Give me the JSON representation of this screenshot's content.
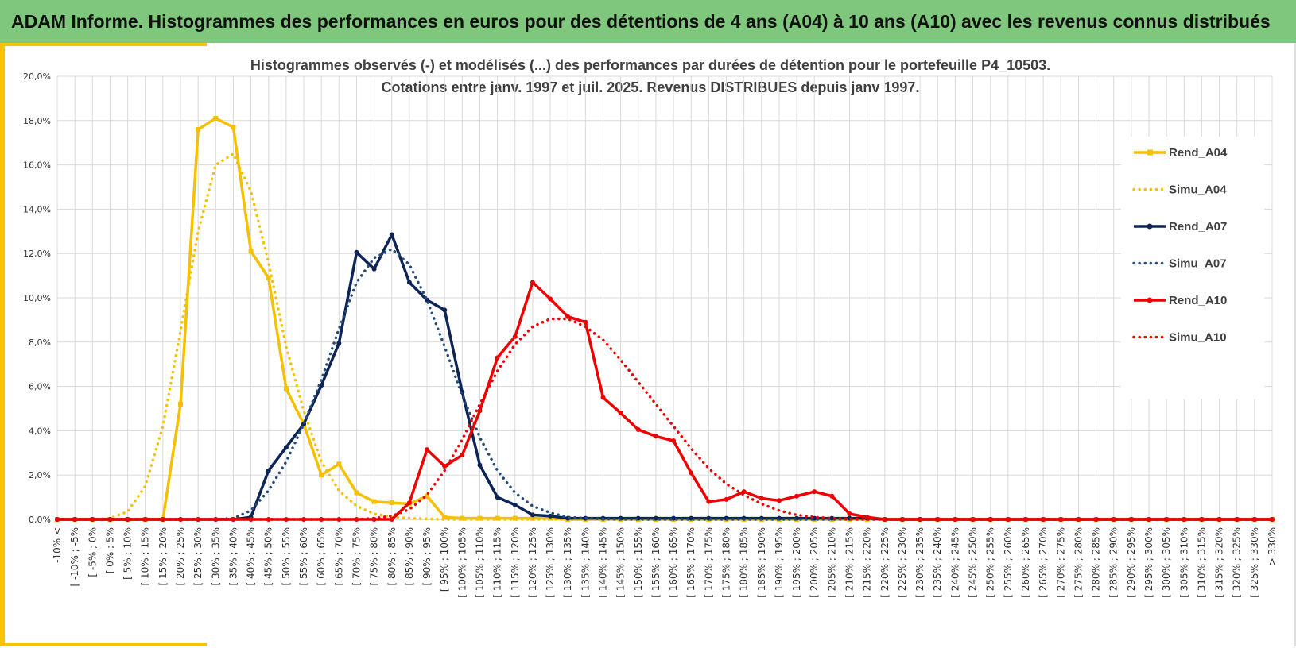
{
  "banner": {
    "title": "ADAM Informe. Histogrammes des performances en euros pour des détentions de 4 ans (A04) à 10 ans (A10) avec les revenus connus distribués"
  },
  "colors": {
    "banner_bg": "#7fc77c",
    "accent": "#f5c400",
    "A04": "#f5c000",
    "A07_rend": "#0d2456",
    "A07_simu": "#264d7a",
    "A10": "#ee0000",
    "grid": "#d9d9d9"
  },
  "chart_data": {
    "type": "line",
    "title_line1": "Histogrammes observés (-) et modélisés (...) des performances par durées de détention pour le portefeuille P4_10503.",
    "title_line2": "Cotations entre janv. 1997 et juil. 2025. Revenus DISTRIBUES depuis janv 1997.",
    "ylim": [
      0,
      20
    ],
    "ytick_values": [
      0,
      2,
      4,
      6,
      8,
      10,
      12,
      14,
      16,
      18,
      20
    ],
    "ytick_labels": [
      "0,0%",
      "2,0%",
      "4,0%",
      "6,0%",
      "8,0%",
      "10,0%",
      "12,0%",
      "14,0%",
      "16,0%",
      "18,0%",
      "20,0%"
    ],
    "grid": true,
    "legend_position": "right",
    "categories": [
      "-10% <",
      "[ -10% ; -5%",
      "[ -5% ; 0%",
      "[ 0% ; 5%",
      "[ 5% ; 10%",
      "[ 10% ; 15%",
      "[ 15% ; 20%",
      "[ 20% ; 25%",
      "[ 25% ; 30%",
      "[ 30% ; 35%",
      "[ 35% ; 40%",
      "[ 40% ; 45%",
      "[ 45% ; 50%",
      "[ 50% ; 55%",
      "[ 55% ; 60%",
      "[ 60% ; 65%",
      "[ 65% ; 70%",
      "[ 70% ; 75%",
      "[ 75% ; 80%",
      "[ 80% ; 85%",
      "[ 85% ; 90%",
      "[ 90% ; 95%",
      "[ 95% ; 100%",
      "[ 100% ; 105%",
      "[ 105% ; 110%",
      "[ 110% ; 115%",
      "[ 115% ; 120%",
      "[ 120% ; 125%",
      "[ 125% ; 130%",
      "[ 130% ; 135%",
      "[ 135% ; 140%",
      "[ 140% ; 145%",
      "[ 145% ; 150%",
      "[ 150% ; 155%",
      "[ 155% ; 160%",
      "[ 160% ; 165%",
      "[ 165% ; 170%",
      "[ 170% ; 175%",
      "[ 175% ; 180%",
      "[ 180% ; 185%",
      "[ 185% ; 190%",
      "[ 190% ; 195%",
      "[ 195% ; 200%",
      "[ 200% ; 205%",
      "[ 205% ; 210%",
      "[ 210% ; 215%",
      "[ 215% ; 220%",
      "[ 220% ; 225%",
      "[ 225% ; 230%",
      "[ 230% ; 235%",
      "[ 235% ; 240%",
      "[ 240% ; 245%",
      "[ 245% ; 250%",
      "[ 250% ; 255%",
      "[ 255% ; 260%",
      "[ 260% ; 265%",
      "[ 265% ; 270%",
      "[ 270% ; 275%",
      "[ 275% ; 280%",
      "[ 280% ; 285%",
      "[ 285% ; 290%",
      "[ 290% ; 295%",
      "[ 295% ; 300%",
      "[ 300% ; 305%",
      "[ 305% ; 310%",
      "[ 310% ; 315%",
      "[ 315% ; 320%",
      "[ 320% ; 325%",
      "[ 325% ; 330%",
      "> 330%"
    ],
    "series": [
      {
        "name": "Rend_A04",
        "style": "solid",
        "marker": "square",
        "color": "#f5c000",
        "values": [
          0,
          0,
          0,
          0,
          0,
          0,
          0,
          5.2,
          17.6,
          18.1,
          17.7,
          12.1,
          10.9,
          5.9,
          4.3,
          2.0,
          2.5,
          1.2,
          0.8,
          0.75,
          0.7,
          1.05,
          0.1,
          0.05,
          0.05,
          0.05,
          0.05,
          0.05,
          0.05,
          0,
          0,
          0,
          0,
          0,
          0,
          0,
          0,
          0,
          0,
          0,
          0,
          0,
          0,
          0,
          0,
          0,
          0,
          0,
          0,
          0,
          0,
          0,
          0,
          0,
          0,
          0,
          0,
          0,
          0,
          0,
          0,
          0,
          0,
          0,
          0,
          0,
          0,
          0,
          0,
          0
        ]
      },
      {
        "name": "Simu_A04",
        "style": "dotted",
        "marker": "none",
        "color": "#f5c000",
        "values": [
          0,
          0,
          0,
          0.05,
          0.35,
          1.5,
          4.2,
          8.5,
          13.0,
          16.0,
          16.5,
          14.8,
          11.6,
          7.8,
          4.9,
          2.6,
          1.3,
          0.6,
          0.25,
          0.1,
          0.05,
          0.02,
          0,
          0,
          0,
          0,
          0,
          0,
          0,
          0,
          0,
          0,
          0,
          0,
          0,
          0,
          0,
          0,
          0,
          0,
          0,
          0,
          0,
          0,
          0,
          0,
          0,
          0,
          0,
          0,
          0,
          0,
          0,
          0,
          0,
          0,
          0,
          0,
          0,
          0,
          0,
          0,
          0,
          0,
          0,
          0,
          0,
          0,
          0,
          0
        ]
      },
      {
        "name": "Rend_A07",
        "style": "solid",
        "marker": "circle",
        "color": "#0d2456",
        "values": [
          0,
          0,
          0,
          0,
          0,
          0,
          0,
          0,
          0,
          0,
          0,
          0.1,
          2.2,
          3.25,
          4.3,
          6.05,
          7.95,
          12.05,
          11.3,
          12.85,
          10.7,
          9.9,
          9.45,
          5.75,
          2.45,
          1.0,
          0.65,
          0.2,
          0.15,
          0.05,
          0.05,
          0.05,
          0.05,
          0.05,
          0.05,
          0.05,
          0.05,
          0.05,
          0.05,
          0.05,
          0.05,
          0.05,
          0.05,
          0.05,
          0.05,
          0.05,
          0.05,
          0,
          0,
          0,
          0,
          0,
          0,
          0,
          0,
          0,
          0,
          0,
          0,
          0,
          0,
          0,
          0,
          0,
          0,
          0,
          0,
          0,
          0,
          0
        ]
      },
      {
        "name": "Simu_A07",
        "style": "dotted",
        "marker": "none",
        "color": "#264d7a",
        "values": [
          0,
          0,
          0,
          0,
          0,
          0,
          0,
          0,
          0,
          0,
          0.05,
          0.4,
          1.3,
          2.6,
          4.3,
          6.3,
          8.6,
          10.7,
          11.8,
          12.2,
          11.5,
          9.9,
          7.8,
          5.6,
          3.7,
          2.2,
          1.2,
          0.6,
          0.3,
          0.1,
          0.05,
          0.02,
          0,
          0,
          0,
          0,
          0,
          0,
          0,
          0,
          0,
          0,
          0,
          0,
          0,
          0,
          0,
          0,
          0,
          0,
          0,
          0,
          0,
          0,
          0,
          0,
          0,
          0,
          0,
          0,
          0,
          0,
          0,
          0,
          0,
          0,
          0,
          0,
          0,
          0
        ]
      },
      {
        "name": "Rend_A10",
        "style": "solid",
        "marker": "circle",
        "color": "#ee0000",
        "values": [
          0,
          0,
          0,
          0,
          0,
          0,
          0,
          0,
          0,
          0,
          0,
          0,
          0,
          0,
          0,
          0,
          0,
          0,
          0,
          0,
          0.75,
          3.15,
          2.4,
          2.9,
          4.9,
          7.3,
          8.25,
          10.7,
          9.95,
          9.15,
          8.9,
          5.5,
          4.8,
          4.05,
          3.75,
          3.55,
          2.1,
          0.8,
          0.9,
          1.25,
          0.95,
          0.85,
          1.05,
          1.25,
          1.05,
          0.25,
          0.1,
          0,
          0,
          0,
          0,
          0,
          0,
          0,
          0,
          0,
          0,
          0,
          0,
          0,
          0,
          0,
          0,
          0,
          0,
          0,
          0,
          0,
          0,
          0
        ]
      },
      {
        "name": "Simu_A10",
        "style": "dotted",
        "marker": "none",
        "color": "#ee0000",
        "values": [
          0,
          0,
          0,
          0,
          0,
          0,
          0,
          0,
          0,
          0,
          0,
          0,
          0,
          0,
          0,
          0,
          0,
          0,
          0.05,
          0.15,
          0.45,
          1.1,
          2.2,
          3.6,
          5.2,
          6.7,
          7.9,
          8.7,
          9.05,
          9.05,
          8.7,
          8.1,
          7.2,
          6.2,
          5.2,
          4.2,
          3.2,
          2.3,
          1.6,
          1.1,
          0.7,
          0.4,
          0.2,
          0.1,
          0.05,
          0.02,
          0,
          0,
          0,
          0,
          0,
          0,
          0,
          0,
          0,
          0,
          0,
          0,
          0,
          0,
          0,
          0,
          0,
          0,
          0,
          0,
          0,
          0,
          0,
          0
        ]
      }
    ]
  }
}
